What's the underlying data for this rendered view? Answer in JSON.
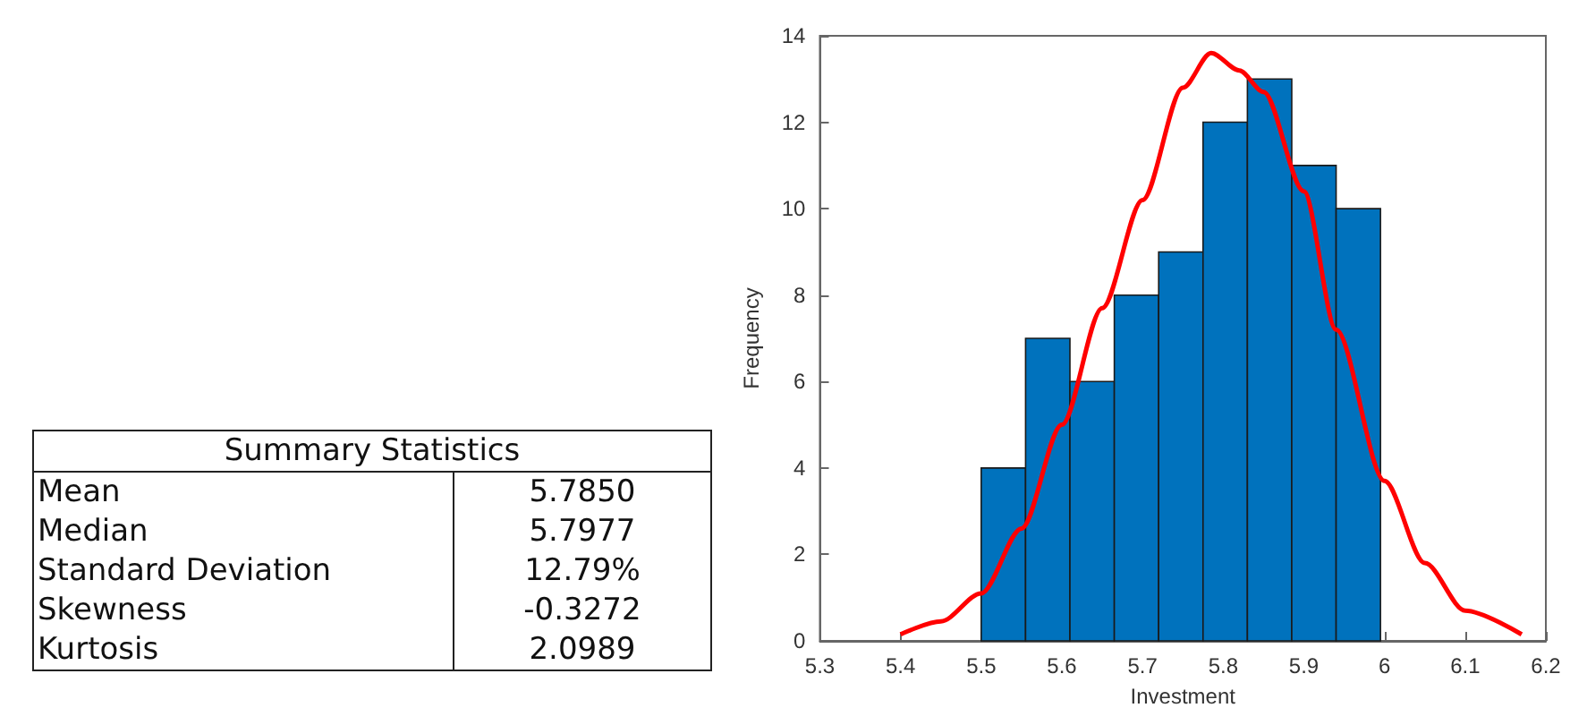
{
  "chart_data": [
    {
      "type": "other",
      "title": "Summary Statistics",
      "categories": [
        "Mean",
        "Median",
        "Standard Deviation",
        "Skewness",
        "Kurtosis"
      ],
      "value_labels": [
        "5.7850",
        "5.7977",
        "12.79%",
        "-0.3272",
        "2.0989"
      ]
    },
    {
      "type": "histogram",
      "xlabel": "Investment",
      "ylabel": "Frequency",
      "grid": false,
      "bins": [
        5.5,
        5.555,
        5.61,
        5.665,
        5.72,
        5.775,
        5.83,
        5.885,
        5.94,
        5.995
      ],
      "values": [
        4,
        7,
        6,
        8,
        9,
        12,
        13,
        11,
        10
      ],
      "color": "#0072bd",
      "series": [
        {
          "type": "line",
          "color": "#ff0000",
          "marker": "none",
          "x": [
            5.4,
            5.45,
            5.5,
            5.55,
            5.6,
            5.65,
            5.7,
            5.75,
            5.785,
            5.82,
            5.85,
            5.9,
            5.94,
            6.0,
            6.05,
            6.1,
            6.17
          ],
          "values": [
            0.15,
            0.45,
            1.1,
            2.6,
            5.0,
            7.7,
            10.2,
            12.8,
            13.6,
            13.2,
            12.7,
            10.4,
            7.2,
            3.7,
            1.8,
            0.7,
            0.15
          ]
        }
      ],
      "xlim": [
        5.3,
        6.2
      ],
      "xticks": [
        5.3,
        5.4,
        5.5,
        5.6,
        5.7,
        5.8,
        5.9,
        6,
        6.1,
        6.2
      ],
      "ylim": [
        0,
        14
      ],
      "yticks": [
        0,
        2,
        4,
        6,
        8,
        10,
        12,
        14
      ]
    }
  ]
}
